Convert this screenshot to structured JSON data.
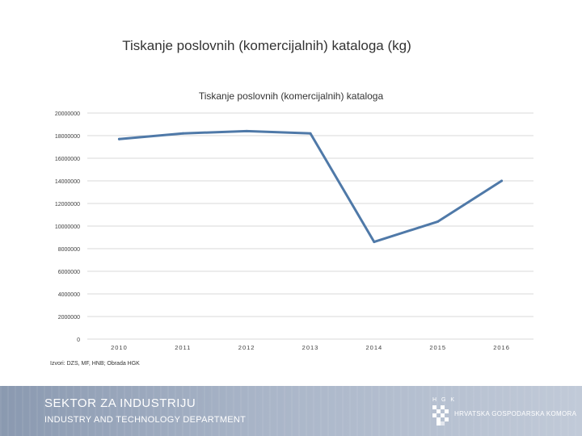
{
  "slide_title": "Tiskanje poslovnih (komercijalnih) kataloga (kg)",
  "source": "Izvori: DZS, MF, HNB; Obrada HGK",
  "footer": {
    "line1": "SEKTOR ZA INDUSTRIJU",
    "line2": "INDUSTRY AND TECHNOLOGY DEPARTMENT",
    "hgk": "H G K",
    "org": "HRVATSKA GOSPODARSKA KOMORA"
  },
  "colors": {
    "line": "#4f79a8",
    "grid": "#d9d9d9",
    "footer": "#a3afc2"
  },
  "chart_data": {
    "type": "line",
    "title": "Tiskanje poslovnih (komercijalnih) kataloga",
    "categories": [
      "2010",
      "2011",
      "2012",
      "2013",
      "2014",
      "2015",
      "2016"
    ],
    "series": [
      {
        "values": [
          17700000,
          18200000,
          18400000,
          18200000,
          8600000,
          10400000,
          14000000
        ]
      }
    ],
    "ylim": [
      0,
      20000000
    ],
    "yticks": [
      0,
      2000000,
      4000000,
      6000000,
      8000000,
      10000000,
      12000000,
      14000000,
      16000000,
      18000000,
      20000000
    ],
    "grid": true,
    "legend": "none",
    "xlabel": "",
    "ylabel": ""
  }
}
